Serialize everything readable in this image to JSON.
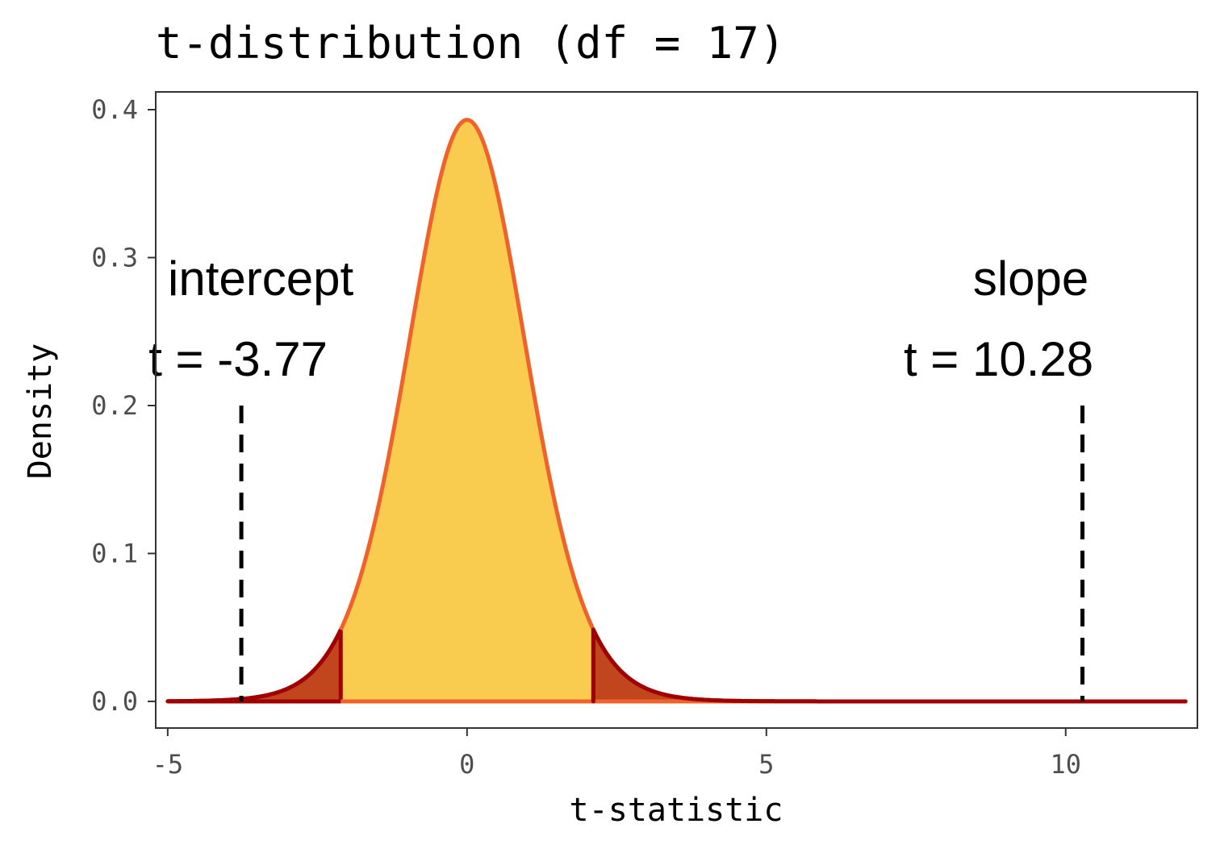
{
  "chart_data": {
    "type": "area",
    "title": "t-distribution (df = 17)",
    "xlabel": "t-statistic",
    "ylabel": "Density",
    "df": 17,
    "xlim": [
      -5.2,
      12.2
    ],
    "ylim": [
      -0.018,
      0.412
    ],
    "x_ticks": [
      -5,
      0,
      5,
      10
    ],
    "x_tick_labels": [
      "-5",
      "0",
      "5",
      "10"
    ],
    "y_ticks": [
      0.0,
      0.1,
      0.2,
      0.3,
      0.4
    ],
    "y_tick_labels": [
      "0.0",
      "0.1",
      "0.2",
      "0.3",
      "0.4"
    ],
    "curve_range": [
      -5,
      12
    ],
    "critical_value": 2.11,
    "grid": false,
    "legend": "none",
    "colors": {
      "body_fill": "#f9cb4f",
      "curve_line": "#f0622c",
      "tail_fill": "#c1461d",
      "tail_line": "#a00000",
      "marker_line": "#000000",
      "panel_border": "#333333"
    },
    "markers": [
      {
        "label": "intercept",
        "value_label": "t = -3.77",
        "t": -3.77,
        "line_top_density": 0.2
      },
      {
        "label": "slope",
        "value_label": "t = 10.28",
        "t": 10.28,
        "line_top_density": 0.2
      }
    ]
  }
}
